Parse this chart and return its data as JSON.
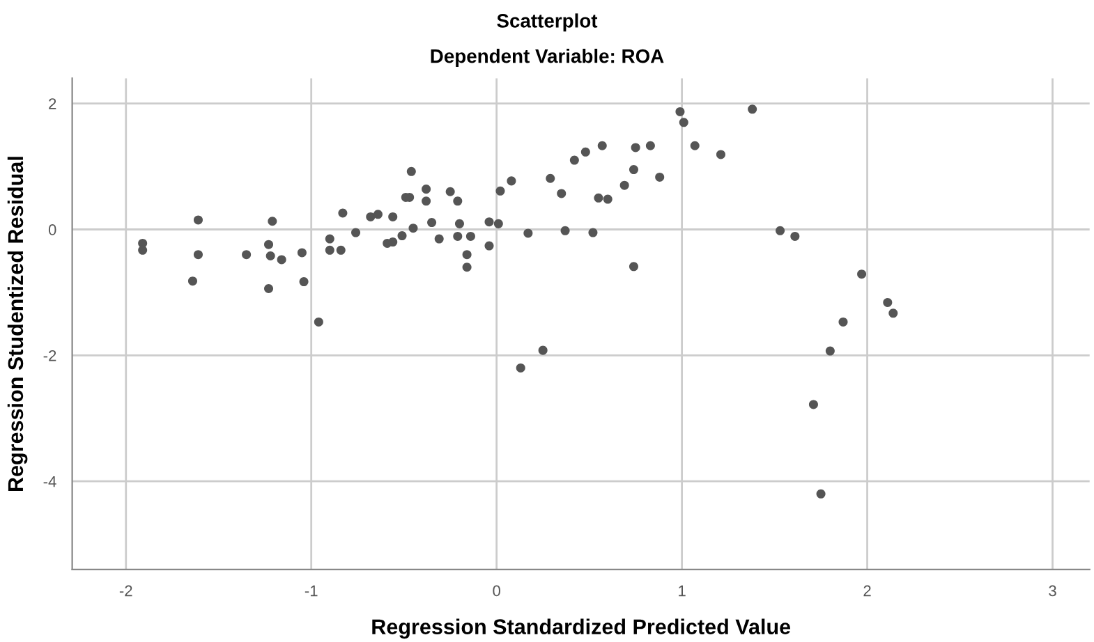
{
  "chart_data": {
    "type": "scatter",
    "title": "Scatterplot",
    "subtitle": "Dependent Variable: ROA",
    "xlabel": "Regression Standardized Predicted Value",
    "ylabel": "Regression Studentized Residual",
    "xlim": [
      -2.29,
      3.2
    ],
    "ylim": [
      -5.4,
      2.4
    ],
    "xticks": [
      -2,
      -1,
      0,
      1,
      2,
      3
    ],
    "yticks": [
      -4,
      -2,
      0,
      2
    ],
    "grid": true,
    "marker": "circle",
    "series": [
      {
        "color": "#555555",
        "x": [
          -1.91,
          -1.91,
          -1.61,
          -1.61,
          -1.64,
          -1.35,
          -1.23,
          -1.21,
          -1.22,
          -1.16,
          -1.23,
          -1.05,
          -1.04,
          -0.96,
          -0.9,
          -0.9,
          -0.84,
          -0.83,
          -0.76,
          -0.68,
          -0.64,
          -0.56,
          -0.59,
          -0.56,
          -0.51,
          -0.49,
          -0.47,
          -0.46,
          -0.45,
          -0.38,
          -0.38,
          -0.35,
          -0.31,
          -0.25,
          -0.21,
          -0.2,
          -0.21,
          -0.14,
          -0.16,
          -0.16,
          -0.04,
          0.01,
          -0.04,
          0.02,
          0.08,
          0.17,
          0.29,
          0.35,
          0.37,
          0.42,
          0.48,
          0.52,
          0.57,
          0.55,
          0.6,
          0.69,
          0.74,
          0.75,
          0.83,
          0.88,
          0.74,
          0.99,
          1.01,
          1.07,
          1.21,
          1.38,
          1.53,
          1.61,
          1.97,
          2.11,
          2.14,
          1.87,
          1.8,
          1.71,
          1.75,
          0.25,
          0.13
        ],
        "values": [
          -0.22,
          -0.33,
          0.15,
          -0.4,
          -0.82,
          -0.4,
          -0.24,
          0.13,
          -0.42,
          -0.48,
          -0.94,
          -0.37,
          -0.83,
          -1.47,
          -0.15,
          -0.33,
          -0.33,
          0.26,
          -0.05,
          0.2,
          0.24,
          0.2,
          -0.22,
          -0.2,
          -0.1,
          0.51,
          0.51,
          0.92,
          0.02,
          0.64,
          0.45,
          0.11,
          -0.15,
          0.6,
          0.45,
          0.09,
          -0.11,
          -0.11,
          -0.4,
          -0.6,
          0.12,
          0.09,
          -0.26,
          0.61,
          0.77,
          -0.06,
          0.81,
          0.57,
          -0.02,
          1.1,
          1.23,
          -0.05,
          1.33,
          0.5,
          0.48,
          0.7,
          0.95,
          1.3,
          1.33,
          0.83,
          -0.59,
          1.87,
          1.7,
          1.33,
          1.19,
          1.91,
          -0.02,
          -0.11,
          -0.71,
          -1.16,
          -1.33,
          -1.47,
          -1.93,
          -2.78,
          -4.2,
          -1.92,
          -2.2
        ]
      }
    ]
  }
}
